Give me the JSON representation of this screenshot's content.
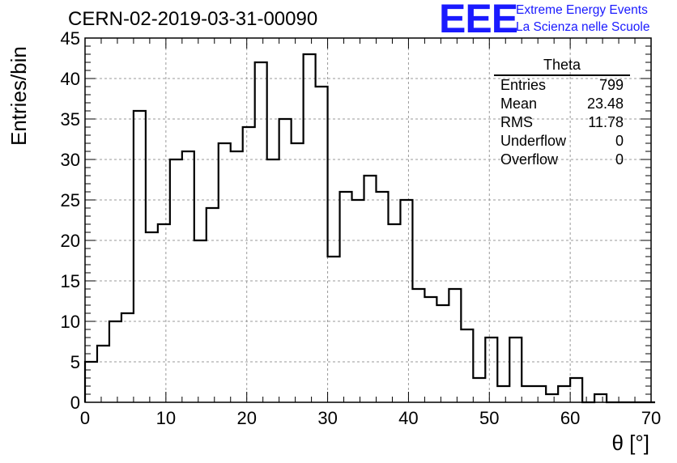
{
  "title": "CERN-02-2019-03-31-00090",
  "logo": {
    "mark": "EEE",
    "line1": "Extreme Energy Events",
    "line2": "La Scienza nelle Scuole",
    "color": "#1a1aff"
  },
  "stats": {
    "name": "Theta",
    "rows": [
      {
        "label": "Entries",
        "value": "799"
      },
      {
        "label": "Mean",
        "value": "23.48"
      },
      {
        "label": "RMS",
        "value": "11.78"
      },
      {
        "label": "Underflow",
        "value": "0"
      },
      {
        "label": "Overflow",
        "value": "0"
      }
    ]
  },
  "chart_data": {
    "type": "bar",
    "title": "CERN-02-2019-03-31-00090",
    "xlabel": "θ [°]",
    "ylabel": "Entries/bin",
    "xlim": [
      0,
      70
    ],
    "ylim": [
      0,
      45
    ],
    "x_ticks": [
      0,
      10,
      20,
      30,
      40,
      50,
      60,
      70
    ],
    "y_ticks": [
      0,
      5,
      10,
      15,
      20,
      25,
      30,
      35,
      40,
      45
    ],
    "grid": true,
    "bin_edges_start": 0,
    "bin_width": 1.5,
    "values": [
      5,
      7,
      10,
      11,
      36,
      21,
      22,
      30,
      31,
      20,
      24,
      32,
      31,
      34,
      42,
      30,
      35,
      32,
      43,
      39,
      18,
      26,
      25,
      28,
      26,
      22,
      25,
      14,
      13,
      12,
      14,
      9,
      3,
      8,
      2,
      8,
      2,
      2,
      1,
      2,
      3,
      0,
      1,
      0,
      0,
      0,
      0
    ],
    "line_color": "#000000"
  }
}
